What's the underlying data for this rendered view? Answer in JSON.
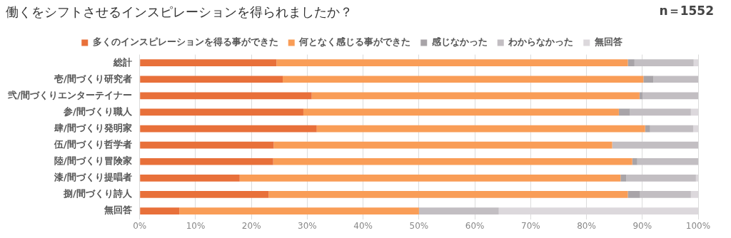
{
  "chart_data": {
    "type": "bar",
    "orientation": "horizontal",
    "stacked": true,
    "title": "働くをシフトさせるインスピレーションを得られましたか？",
    "annotations": [
      "n＝1552"
    ],
    "categories": [
      "総計",
      "壱/間づくり研究者",
      "弐/間づくりエンターテイナー",
      "参/間づくり職人",
      "肆/間づくり発明家",
      "伍/間づくり哲学者",
      "陸/間づくり冒険家",
      "漆/間づくり提唱者",
      "捌/間づくり詩人",
      "無回答"
    ],
    "series": [
      {
        "name": "多くのインスピレーションを得る事ができた",
        "color": "#e8703a",
        "values": [
          24.5,
          25.6,
          30.8,
          29.3,
          31.7,
          24.0,
          23.9,
          17.9,
          23.1,
          7.1
        ]
      },
      {
        "name": "何となく感じる事ができた",
        "color": "#f99d57",
        "values": [
          62.9,
          64.6,
          58.7,
          56.5,
          58.8,
          60.6,
          64.3,
          68.2,
          64.3,
          42.9
        ]
      },
      {
        "name": "感じなかった",
        "color": "#a8a4a8",
        "values": [
          1.2,
          1.8,
          0.6,
          2.0,
          0.9,
          0,
          0.9,
          1.0,
          2.2,
          0
        ]
      },
      {
        "name": "わからなかった",
        "color": "#c2bec2",
        "values": [
          10.6,
          8.0,
          9.9,
          10.9,
          7.7,
          15.4,
          10.9,
          12.5,
          9.1,
          14.3
        ]
      },
      {
        "name": "無回答",
        "color": "#dcd8dc",
        "values": [
          0.8,
          0,
          0,
          1.3,
          0.9,
          0,
          0,
          0.4,
          1.3,
          35.7
        ]
      }
    ],
    "xlim": [
      0,
      100
    ],
    "xticks": [
      {
        "value": 0,
        "label": "0%"
      },
      {
        "value": 10,
        "label": "10%"
      },
      {
        "value": 20,
        "label": "20%"
      },
      {
        "value": 30,
        "label": "30%"
      },
      {
        "value": 40,
        "label": "40%"
      },
      {
        "value": 50,
        "label": "50%"
      },
      {
        "value": 60,
        "label": "60%"
      },
      {
        "value": 70,
        "label": "70%"
      },
      {
        "value": 80,
        "label": "80%"
      },
      {
        "value": 90,
        "label": "90%"
      },
      {
        "value": 100,
        "label": "100%"
      }
    ],
    "grid": "x",
    "legend": "top"
  }
}
